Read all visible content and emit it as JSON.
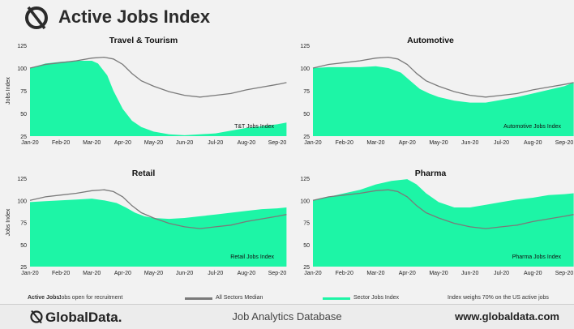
{
  "header": {
    "title": "Active Jobs Index"
  },
  "legend": {
    "active_label": "Active Jobs:",
    "active_desc": "Jobs open for recruitment",
    "median_label": "All Sectors Median",
    "sector_label": "Sector Jobs Index",
    "note": "Index weighs 70% on the US active jobs"
  },
  "footer": {
    "brand": "GlobalData.",
    "database": "Job Analytics Database",
    "url": "www.globaldata.com"
  },
  "colors": {
    "sector_fill": "#1df5a6",
    "median_line": "#7a7a7a",
    "background": "#f2f2f2"
  },
  "chart_data": [
    {
      "type": "area",
      "title": "Travel & Tourism",
      "ylabel": "Jobs Index",
      "ylim": [
        25,
        125
      ],
      "yticks": [
        25,
        50,
        75,
        100,
        125
      ],
      "xticks": [
        "Jan-20",
        "Feb-20",
        "Mar-20",
        "Apr-20",
        "May-20",
        "Jun-20",
        "Jul-20",
        "Aug-20",
        "Sep-20"
      ],
      "annotation": "T&T Jobs Index",
      "series": [
        {
          "name": "All Sectors Median",
          "type": "line",
          "values": [
            [
              0,
              100
            ],
            [
              0.5,
              104
            ],
            [
              1,
              106
            ],
            [
              1.5,
              108
            ],
            [
              2,
              111
            ],
            [
              2.4,
              112
            ],
            [
              2.7,
              110
            ],
            [
              3,
              104
            ],
            [
              3.3,
              94
            ],
            [
              3.6,
              86
            ],
            [
              4,
              80
            ],
            [
              4.5,
              74
            ],
            [
              5,
              70
            ],
            [
              5.5,
              68
            ],
            [
              6,
              70
            ],
            [
              6.5,
              72
            ],
            [
              7,
              76
            ],
            [
              7.5,
              79
            ],
            [
              8,
              82
            ],
            [
              8.3,
              84
            ]
          ]
        },
        {
          "name": "Sector Jobs Index",
          "type": "area",
          "values": [
            [
              0,
              100
            ],
            [
              0.5,
              105
            ],
            [
              1,
              107
            ],
            [
              1.5,
              108
            ],
            [
              2,
              108
            ],
            [
              2.2,
              105
            ],
            [
              2.5,
              92
            ],
            [
              2.7,
              75
            ],
            [
              3,
              55
            ],
            [
              3.3,
              42
            ],
            [
              3.6,
              35
            ],
            [
              4,
              30
            ],
            [
              4.5,
              27
            ],
            [
              5,
              26
            ],
            [
              5.5,
              27
            ],
            [
              6,
              28
            ],
            [
              6.5,
              31
            ],
            [
              7,
              34
            ],
            [
              7.5,
              36
            ],
            [
              8,
              38
            ],
            [
              8.3,
              40
            ]
          ]
        }
      ]
    },
    {
      "type": "area",
      "title": "Automotive",
      "ylabel": "",
      "ylim": [
        25,
        125
      ],
      "yticks": [
        25,
        50,
        75,
        100,
        125
      ],
      "xticks": [
        "Jan-20",
        "Feb-20",
        "Mar-20",
        "Apr-20",
        "May-20",
        "Jun-20",
        "Jul-20",
        "Aug-20",
        "Sep-20"
      ],
      "annotation": "Automotive Jobs Index",
      "series": [
        {
          "name": "All Sectors Median",
          "type": "line",
          "values": [
            [
              0,
              100
            ],
            [
              0.5,
              104
            ],
            [
              1,
              106
            ],
            [
              1.5,
              108
            ],
            [
              2,
              111
            ],
            [
              2.4,
              112
            ],
            [
              2.7,
              110
            ],
            [
              3,
              104
            ],
            [
              3.3,
              94
            ],
            [
              3.6,
              86
            ],
            [
              4,
              80
            ],
            [
              4.5,
              74
            ],
            [
              5,
              70
            ],
            [
              5.5,
              68
            ],
            [
              6,
              70
            ],
            [
              6.5,
              72
            ],
            [
              7,
              76
            ],
            [
              7.5,
              79
            ],
            [
              8,
              82
            ],
            [
              8.3,
              84
            ]
          ]
        },
        {
          "name": "Sector Jobs Index",
          "type": "area",
          "values": [
            [
              0,
              100
            ],
            [
              0.5,
              101
            ],
            [
              1,
              101
            ],
            [
              1.5,
              101
            ],
            [
              2,
              102
            ],
            [
              2.4,
              100
            ],
            [
              2.8,
              95
            ],
            [
              3.1,
              86
            ],
            [
              3.4,
              77
            ],
            [
              3.7,
              72
            ],
            [
              4,
              68
            ],
            [
              4.5,
              64
            ],
            [
              5,
              62
            ],
            [
              5.5,
              62
            ],
            [
              6,
              65
            ],
            [
              6.5,
              68
            ],
            [
              7,
              72
            ],
            [
              7.5,
              76
            ],
            [
              8,
              80
            ],
            [
              8.3,
              84
            ]
          ]
        }
      ]
    },
    {
      "type": "area",
      "title": "Retail",
      "ylabel": "Jobs Index",
      "ylim": [
        25,
        125
      ],
      "yticks": [
        25,
        50,
        75,
        100,
        125
      ],
      "xticks": [
        "Jan-20",
        "Feb-20",
        "Mar-20",
        "Apr-20",
        "May-20",
        "Jun-20",
        "Jul-20",
        "Aug-20",
        "Sep-20"
      ],
      "annotation": "Retail Jobs Index",
      "series": [
        {
          "name": "All Sectors Median",
          "type": "line",
          "values": [
            [
              0,
              100
            ],
            [
              0.5,
              104
            ],
            [
              1,
              106
            ],
            [
              1.5,
              108
            ],
            [
              2,
              111
            ],
            [
              2.4,
              112
            ],
            [
              2.7,
              110
            ],
            [
              3,
              104
            ],
            [
              3.3,
              94
            ],
            [
              3.6,
              86
            ],
            [
              4,
              80
            ],
            [
              4.5,
              74
            ],
            [
              5,
              70
            ],
            [
              5.5,
              68
            ],
            [
              6,
              70
            ],
            [
              6.5,
              72
            ],
            [
              7,
              76
            ],
            [
              7.5,
              79
            ],
            [
              8,
              82
            ],
            [
              8.3,
              84
            ]
          ]
        },
        {
          "name": "Sector Jobs Index",
          "type": "area",
          "values": [
            [
              0,
              98
            ],
            [
              0.5,
              99
            ],
            [
              1,
              100
            ],
            [
              1.5,
              101
            ],
            [
              2,
              102
            ],
            [
              2.4,
              100
            ],
            [
              2.8,
              97
            ],
            [
              3.1,
              92
            ],
            [
              3.4,
              86
            ],
            [
              3.7,
              82
            ],
            [
              4,
              80
            ],
            [
              4.5,
              79
            ],
            [
              5,
              80
            ],
            [
              5.5,
              82
            ],
            [
              6,
              84
            ],
            [
              6.5,
              86
            ],
            [
              7,
              88
            ],
            [
              7.5,
              90
            ],
            [
              8,
              91
            ],
            [
              8.3,
              92
            ]
          ]
        }
      ]
    },
    {
      "type": "area",
      "title": "Pharma",
      "ylabel": "",
      "ylim": [
        25,
        125
      ],
      "yticks": [
        25,
        50,
        75,
        100,
        125
      ],
      "xticks": [
        "Jan-20",
        "Feb-20",
        "Mar-20",
        "Apr-20",
        "May-20",
        "Jun-20",
        "Jul-20",
        "Aug-20",
        "Sep-20"
      ],
      "annotation": "Pharma Jobs Index",
      "series": [
        {
          "name": "All Sectors Median",
          "type": "line",
          "values": [
            [
              0,
              100
            ],
            [
              0.5,
              104
            ],
            [
              1,
              106
            ],
            [
              1.5,
              108
            ],
            [
              2,
              111
            ],
            [
              2.4,
              112
            ],
            [
              2.7,
              110
            ],
            [
              3,
              104
            ],
            [
              3.3,
              94
            ],
            [
              3.6,
              86
            ],
            [
              4,
              80
            ],
            [
              4.5,
              74
            ],
            [
              5,
              70
            ],
            [
              5.5,
              68
            ],
            [
              6,
              70
            ],
            [
              6.5,
              72
            ],
            [
              7,
              76
            ],
            [
              7.5,
              79
            ],
            [
              8,
              82
            ],
            [
              8.3,
              84
            ]
          ]
        },
        {
          "name": "Sector Jobs Index",
          "type": "area",
          "values": [
            [
              0,
              100
            ],
            [
              0.5,
              104
            ],
            [
              1,
              108
            ],
            [
              1.5,
              112
            ],
            [
              2,
              118
            ],
            [
              2.5,
              122
            ],
            [
              3,
              124
            ],
            [
              3.3,
              118
            ],
            [
              3.6,
              108
            ],
            [
              4,
              98
            ],
            [
              4.5,
              92
            ],
            [
              5,
              92
            ],
            [
              5.5,
              95
            ],
            [
              6,
              98
            ],
            [
              6.5,
              101
            ],
            [
              7,
              103
            ],
            [
              7.5,
              106
            ],
            [
              8,
              107
            ],
            [
              8.3,
              108
            ]
          ]
        }
      ]
    }
  ]
}
